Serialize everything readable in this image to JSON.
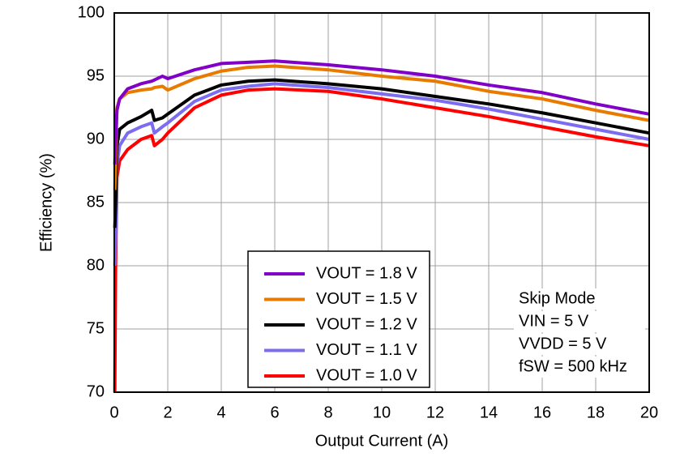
{
  "chart_data": {
    "type": "line",
    "xlabel": "Output Current (A)",
    "ylabel": "Efficiency (%)",
    "x": [
      0.02,
      0.05,
      0.1,
      0.2,
      0.5,
      1,
      1.4,
      1.5,
      1.8,
      2,
      3,
      4,
      5,
      6,
      8,
      10,
      12,
      14,
      16,
      18,
      20
    ],
    "series": [
      {
        "name": "VOUT = 1.8 V",
        "color": "#8000c8",
        "values": [
          88,
          90,
          92.3,
          93.2,
          94,
          94.4,
          94.6,
          94.7,
          95,
          94.8,
          95.5,
          96,
          96.1,
          96.2,
          95.9,
          95.5,
          95,
          94.3,
          93.7,
          92.8,
          92
        ]
      },
      {
        "name": "VOUT = 1.5 V",
        "color": "#e87a00",
        "values": [
          86,
          88,
          92.5,
          93.2,
          93.7,
          93.9,
          94,
          94.1,
          94.2,
          93.9,
          94.8,
          95.4,
          95.7,
          95.8,
          95.5,
          95,
          94.6,
          93.8,
          93.2,
          92.3,
          91.5
        ]
      },
      {
        "name": "VOUT = 1.2 V",
        "color": "#000000",
        "values": [
          83,
          85,
          89.5,
          90.8,
          91.3,
          91.8,
          92.3,
          91.5,
          91.7,
          92,
          93.5,
          94.3,
          94.6,
          94.7,
          94.4,
          94,
          93.4,
          92.8,
          92.1,
          91.3,
          90.5
        ]
      },
      {
        "name": "VOUT = 1.1 V",
        "color": "#7b6cf0",
        "values": [
          80,
          82,
          88,
          89.5,
          90.5,
          91,
          91.3,
          90.5,
          91,
          91.3,
          93,
          93.9,
          94.2,
          94.4,
          94.1,
          93.6,
          93.1,
          92.4,
          91.6,
          90.8,
          90
        ]
      },
      {
        "name": "VOUT = 1.0 V",
        "color": "#ff0000",
        "values": [
          70,
          80,
          87,
          88.3,
          89.2,
          90,
          90.3,
          89.5,
          90,
          90.5,
          92.5,
          93.5,
          93.9,
          94,
          93.8,
          93.2,
          92.5,
          91.8,
          91,
          90.2,
          89.5
        ]
      }
    ],
    "annotations": [
      "Skip Mode",
      "VIN = 5 V",
      "VVDD = 5 V",
      "fSW = 500 kHz"
    ],
    "xlim": [
      0,
      20
    ],
    "xticks": [
      0,
      2,
      4,
      6,
      8,
      10,
      12,
      14,
      16,
      18,
      20
    ],
    "ylim": [
      70,
      100
    ],
    "yticks": [
      70,
      75,
      80,
      85,
      90,
      95,
      100
    ],
    "grid": true
  }
}
